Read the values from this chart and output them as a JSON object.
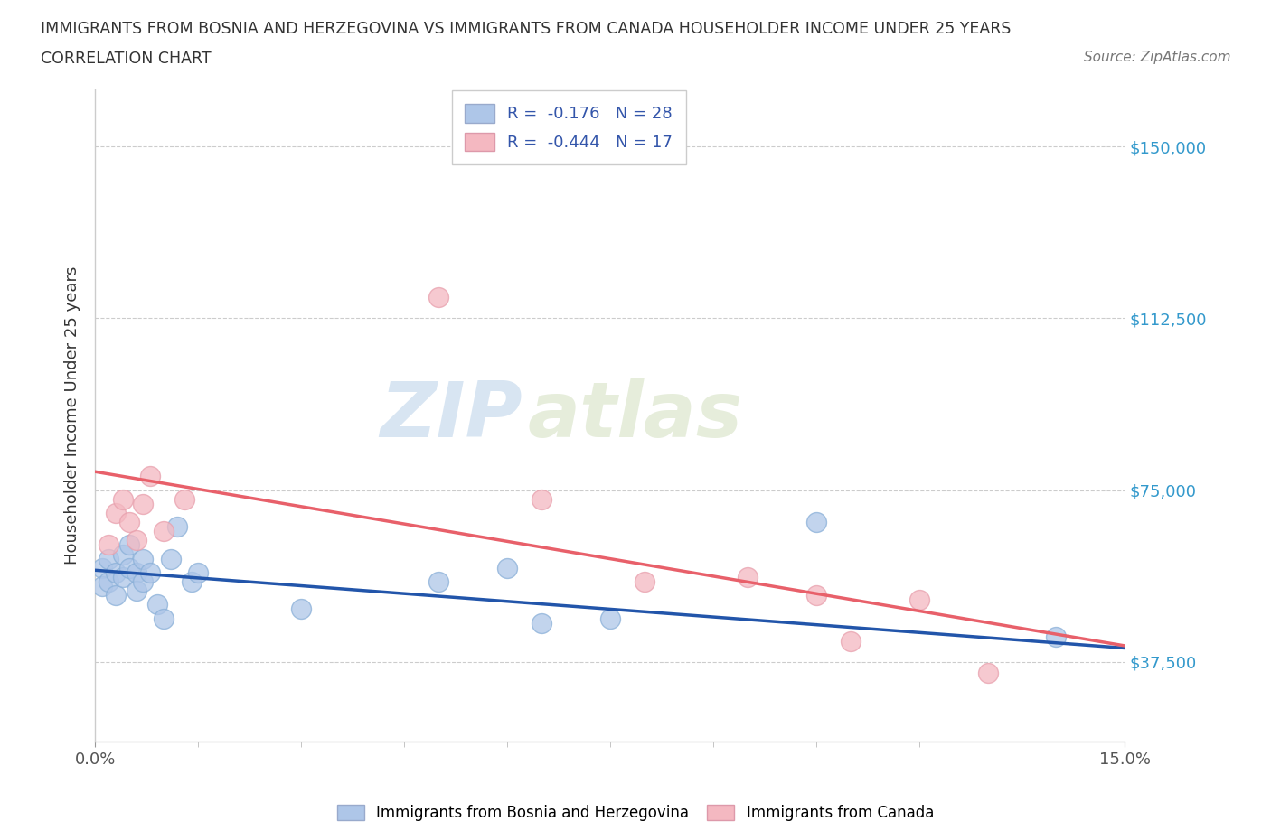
{
  "title_line1": "IMMIGRANTS FROM BOSNIA AND HERZEGOVINA VS IMMIGRANTS FROM CANADA HOUSEHOLDER INCOME UNDER 25 YEARS",
  "title_line2": "CORRELATION CHART",
  "source_text": "Source: ZipAtlas.com",
  "ylabel": "Householder Income Under 25 years",
  "xmin": 0.0,
  "xmax": 0.15,
  "ymin": 20000,
  "ymax": 162500,
  "yticks": [
    37500,
    75000,
    112500,
    150000
  ],
  "ytick_labels": [
    "$37,500",
    "$75,000",
    "$112,500",
    "$150,000"
  ],
  "r_bosnia": -0.176,
  "n_bosnia": 28,
  "r_canada": -0.444,
  "n_canada": 17,
  "bosnia_color": "#aec6e8",
  "canada_color": "#f4b8c1",
  "bosnia_line_color": "#2255aa",
  "canada_line_color": "#e8606a",
  "watermark_zip": "ZIP",
  "watermark_atlas": "atlas",
  "bosnia_scatter_x": [
    0.001,
    0.001,
    0.002,
    0.002,
    0.003,
    0.003,
    0.004,
    0.004,
    0.005,
    0.005,
    0.006,
    0.006,
    0.007,
    0.007,
    0.008,
    0.009,
    0.01,
    0.011,
    0.012,
    0.014,
    0.015,
    0.03,
    0.05,
    0.06,
    0.065,
    0.105,
    0.075,
    0.14
  ],
  "bosnia_scatter_y": [
    58000,
    54000,
    60000,
    55000,
    57000,
    52000,
    61000,
    56000,
    63000,
    58000,
    57000,
    53000,
    60000,
    55000,
    57000,
    50000,
    47000,
    60000,
    67000,
    55000,
    57000,
    49000,
    55000,
    58000,
    46000,
    68000,
    47000,
    43000
  ],
  "canada_scatter_x": [
    0.002,
    0.003,
    0.004,
    0.005,
    0.006,
    0.007,
    0.008,
    0.01,
    0.013,
    0.05,
    0.065,
    0.08,
    0.095,
    0.105,
    0.11,
    0.12,
    0.13
  ],
  "canada_scatter_y": [
    63000,
    70000,
    73000,
    68000,
    64000,
    72000,
    78000,
    66000,
    73000,
    117000,
    73000,
    55000,
    56000,
    52000,
    42000,
    51000,
    35000
  ],
  "legend_bosnia_label": "Immigrants from Bosnia and Herzegovina",
  "legend_canada_label": "Immigrants from Canada",
  "bosnia_line_x0": 0.0,
  "bosnia_line_x1": 0.15,
  "bosnia_line_y0": 57500,
  "bosnia_line_y1": 40500,
  "canada_line_x0": 0.0,
  "canada_line_x1": 0.15,
  "canada_line_y0": 79000,
  "canada_line_y1": 41000
}
